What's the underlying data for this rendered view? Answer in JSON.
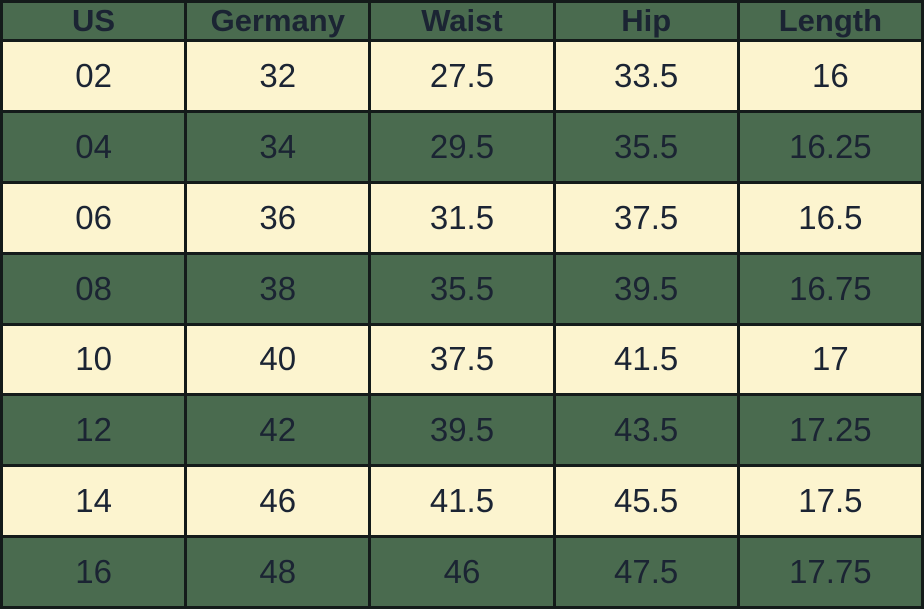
{
  "colors": {
    "header_bg": "#4a6b4f",
    "row_green_bg": "#4a6b4f",
    "row_cream_bg": "#fcf4cf",
    "text": "#1b2433",
    "border": "#141b1a"
  },
  "table": {
    "headers": [
      "US",
      "Germany",
      "Waist",
      "Hip",
      "Length"
    ],
    "rows": [
      [
        "02",
        "32",
        "27.5",
        "33.5",
        "16"
      ],
      [
        "04",
        "34",
        "29.5",
        "35.5",
        "16.25"
      ],
      [
        "06",
        "36",
        "31.5",
        "37.5",
        "16.5"
      ],
      [
        "08",
        "38",
        "35.5",
        "39.5",
        "16.75"
      ],
      [
        "10",
        "40",
        "37.5",
        "41.5",
        "17"
      ],
      [
        "12",
        "42",
        "39.5",
        "43.5",
        "17.25"
      ],
      [
        "14",
        "46",
        "41.5",
        "45.5",
        "17.5"
      ],
      [
        "16",
        "48",
        "46",
        "47.5",
        "17.75"
      ]
    ]
  },
  "chart_data": {
    "type": "table",
    "title": "Size conversion chart (US / Germany) with waist, hip and length measurements",
    "columns": [
      "US",
      "Germany",
      "Waist",
      "Hip",
      "Length"
    ],
    "rows": [
      {
        "US": "02",
        "Germany": 32,
        "Waist": 27.5,
        "Hip": 33.5,
        "Length": 16
      },
      {
        "US": "04",
        "Germany": 34,
        "Waist": 29.5,
        "Hip": 35.5,
        "Length": 16.25
      },
      {
        "US": "06",
        "Germany": 36,
        "Waist": 31.5,
        "Hip": 37.5,
        "Length": 16.5
      },
      {
        "US": "08",
        "Germany": 38,
        "Waist": 35.5,
        "Hip": 39.5,
        "Length": 16.75
      },
      {
        "US": "10",
        "Germany": 40,
        "Waist": 37.5,
        "Hip": 41.5,
        "Length": 17
      },
      {
        "US": "12",
        "Germany": 42,
        "Waist": 39.5,
        "Hip": 43.5,
        "Length": 17.25
      },
      {
        "US": "14",
        "Germany": 46,
        "Waist": 41.5,
        "Hip": 45.5,
        "Length": 17.5
      },
      {
        "US": "16",
        "Germany": 48,
        "Waist": 46,
        "Hip": 47.5,
        "Length": 17.75
      }
    ],
    "layout": {
      "header_style": "green band, bold dark text",
      "row_striping": "cream / green alternating starting with cream",
      "grid": "thick dark borders on all cells"
    }
  }
}
